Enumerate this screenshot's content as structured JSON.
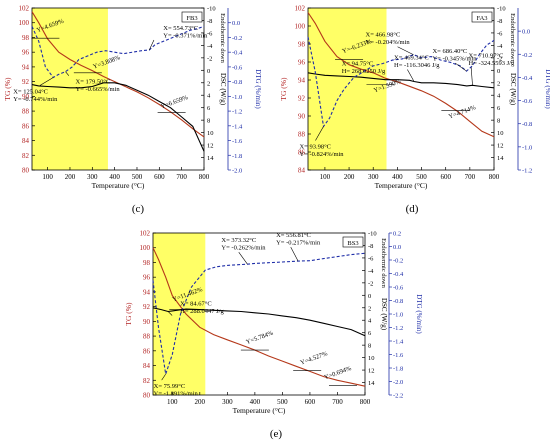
{
  "figure": {
    "panel_labels": [
      "(c)",
      "(d)",
      "(e)"
    ]
  },
  "chart_data": [
    {
      "id": "c",
      "type": "line",
      "sample_label": "FB3",
      "panel_label": "(c)",
      "xlabel": "Temperature (°C)",
      "ylabel_left": "TG (%)",
      "ylabel_right_dsc": "DSC (W/g)",
      "ylabel_right_dtg": "DTG (%/min)",
      "endo_label": "Endothermic  down",
      "xlim": [
        30,
        800
      ],
      "xticks": [
        100,
        200,
        300,
        400,
        500,
        600,
        700,
        800
      ],
      "ylim_tg": [
        80,
        102
      ],
      "yticks_tg": [
        80,
        82,
        84,
        86,
        88,
        90,
        92,
        94,
        96,
        98,
        100,
        102
      ],
      "ylim_dsc": [
        16,
        -10
      ],
      "yticks_dsc": [
        -10,
        -8,
        -6,
        -4,
        -2,
        0,
        2,
        4,
        6,
        8,
        10,
        12,
        14
      ],
      "ylim_dtg": [
        -2.0,
        0.2
      ],
      "yticks_dtg": [
        0.0,
        -0.2,
        -0.4,
        -0.6,
        -0.8,
        -1.0,
        -1.2,
        -1.4,
        -1.6,
        -1.8,
        -2.0
      ],
      "highlight_x": [
        30,
        370
      ],
      "series": [
        {
          "role": "tg",
          "x": [
            30,
            60,
            100,
            150,
            200,
            250,
            300,
            350,
            400,
            450,
            500,
            550,
            600,
            650,
            700,
            750,
            800
          ],
          "y": [
            101.5,
            100.0,
            97.8,
            96.0,
            95.0,
            94.2,
            93.5,
            92.7,
            92.0,
            91.3,
            90.6,
            89.8,
            88.9,
            87.9,
            86.8,
            85.6,
            84.5
          ]
        },
        {
          "role": "dsc",
          "x": [
            30,
            60,
            100,
            150,
            200,
            250,
            300,
            350,
            400,
            450,
            500,
            550,
            600,
            650,
            700,
            750,
            800
          ],
          "y": [
            2.3,
            2.5,
            2.6,
            2.7,
            2.8,
            2.8,
            2.6,
            2.0,
            2.0,
            2.4,
            3.2,
            4.0,
            5.0,
            6.0,
            7.5,
            9.0,
            13.0
          ]
        },
        {
          "role": "dtg",
          "x": [
            30,
            60,
            90,
            125,
            150,
            180,
            210,
            240,
            280,
            320,
            360,
            400,
            440,
            480,
            520,
            555,
            580,
            620,
            660,
            700,
            740,
            770,
            800
          ],
          "y": [
            -0.05,
            -0.25,
            -0.6,
            -0.744,
            -0.7,
            -0.665,
            -0.6,
            -0.5,
            -0.45,
            -0.4,
            -0.38,
            -0.4,
            -0.42,
            -0.4,
            -0.38,
            -0.371,
            -0.3,
            -0.25,
            -0.2,
            -0.15,
            -0.1,
            -0.08,
            -0.05
          ]
        }
      ],
      "annotations": [
        {
          "text": [
            "X= 554.73°C",
            "Y= -0.371%/min"
          ],
          "x": 555,
          "y": -0.371,
          "axis": "dtg"
        },
        {
          "text": [
            "X= 125.04°C",
            "Y= -0.744%/min"
          ],
          "x": 125,
          "y": -0.744,
          "axis": "dtg"
        },
        {
          "text": [
            "X= 179.50°C",
            "Y= -0.665%/min"
          ],
          "x": 180,
          "y": -0.665,
          "axis": "dtg"
        }
      ],
      "step_labels": [
        {
          "text": "Y=4.659%",
          "x": 90,
          "y": 97.9
        },
        {
          "text": "Y=3.808%",
          "x": 280,
          "y": 93.2
        },
        {
          "text": "Y=6.659%",
          "x": 655,
          "y": 87.8
        }
      ]
    },
    {
      "id": "d",
      "type": "line",
      "sample_label": "FA3",
      "panel_label": "(d)",
      "xlabel": "Temperature (°C)",
      "ylabel_left": "TG (%)",
      "ylabel_right_dsc": "DSC (W/g)",
      "ylabel_right_dtg": "DTG (%/min)",
      "endo_label": "Endothermic  down",
      "xlim": [
        30,
        800
      ],
      "xticks": [
        100,
        200,
        300,
        400,
        500,
        600,
        700,
        800
      ],
      "ylim_tg": [
        84,
        102
      ],
      "yticks_tg": [
        84,
        86,
        88,
        90,
        92,
        94,
        96,
        98,
        100,
        102
      ],
      "ylim_dsc": [
        16,
        -10
      ],
      "yticks_dsc": [
        -10,
        -8,
        -6,
        -4,
        -2,
        0,
        2,
        4,
        6,
        8,
        10,
        12,
        14
      ],
      "ylim_dtg": [
        -1.2,
        0.2
      ],
      "yticks_dtg": [
        0.0,
        -0.2,
        -0.4,
        -0.6,
        -0.8,
        -1.0,
        -1.2
      ],
      "highlight_x": [
        30,
        355
      ],
      "series": [
        {
          "role": "tg",
          "x": [
            30,
            60,
            100,
            150,
            200,
            250,
            300,
            350,
            400,
            450,
            500,
            550,
            600,
            650,
            700,
            750,
            800
          ],
          "y": [
            101.5,
            100.3,
            98.3,
            96.6,
            95.7,
            95.2,
            94.8,
            94.2,
            93.8,
            93.3,
            92.8,
            92.2,
            91.4,
            90.5,
            89.4,
            88.3,
            87.7
          ]
        },
        {
          "role": "dsc",
          "x": [
            30,
            60,
            100,
            150,
            200,
            250,
            300,
            350,
            400,
            450,
            469,
            500,
            550,
            600,
            650,
            687,
            711,
            750,
            800
          ],
          "y": [
            0.4,
            0.6,
            0.8,
            0.9,
            1.0,
            1.1,
            1.3,
            1.5,
            1.5,
            1.6,
            1.8,
            2.0,
            2.0,
            2.1,
            2.3,
            2.5,
            2.4,
            2.6,
            2.8
          ]
        },
        {
          "role": "dtg",
          "x": [
            30,
            60,
            94,
            120,
            150,
            180,
            220,
            260,
            300,
            340,
            380,
            420,
            467,
            500,
            540,
            580,
            620,
            660,
            686,
            710,
            740,
            770,
            800
          ],
          "y": [
            -0.05,
            -0.35,
            -0.824,
            -0.75,
            -0.6,
            -0.5,
            -0.4,
            -0.35,
            -0.3,
            -0.28,
            -0.25,
            -0.24,
            -0.204,
            -0.23,
            -0.22,
            -0.25,
            -0.27,
            -0.3,
            -0.345,
            -0.3,
            -0.2,
            -0.12,
            -0.08
          ]
        }
      ],
      "annotations": [
        {
          "text": [
            "X= 466.98°C",
            "Y= -0.204%/min"
          ],
          "x": 467,
          "y": -0.204,
          "axis": "dtg"
        },
        {
          "text": [
            "X= 686.40°C",
            "Y= -0.345%/min"
          ],
          "x": 686,
          "y": -0.345,
          "axis": "dtg"
        },
        {
          "text": [
            "X= 469.34°C",
            "H= -116.3046 J/g"
          ],
          "x": 469,
          "y": 1.8,
          "axis": "dsc"
        },
        {
          "text": [
            "X= 710.97°C",
            "H= -324.5593 J/g"
          ],
          "x": 711,
          "y": 2.4,
          "axis": "dsc"
        },
        {
          "text": [
            "X= 94.75°C",
            "H= 268.0250 J/g"
          ],
          "x": 95,
          "y": 0.8,
          "axis": "dsc"
        },
        {
          "text": [
            "X= 93.98°C",
            "Y= -0.824%/min"
          ],
          "x": 94,
          "y": -0.824,
          "axis": "dtg"
        }
      ],
      "step_labels": [
        {
          "text": "Y=-6.233%",
          "x": 200,
          "y": 96.3
        },
        {
          "text": "Y=1.590%",
          "x": 330,
          "y": 93.5
        },
        {
          "text": "Y=4.714%",
          "x": 640,
          "y": 90.6
        }
      ]
    },
    {
      "id": "e",
      "type": "line",
      "sample_label": "BS3",
      "panel_label": "(e)",
      "xlabel": "Temperature (°C)",
      "ylabel_left": "TG (%)",
      "ylabel_right_dsc": "DSC (W/g)",
      "ylabel_right_dtg": "DTG (%/min)",
      "endo_label": "Endothermic  down",
      "xlim": [
        30,
        800
      ],
      "xticks": [
        100,
        200,
        300,
        400,
        500,
        600,
        700,
        800
      ],
      "ylim_tg": [
        80,
        102
      ],
      "yticks_tg": [
        80,
        82,
        84,
        86,
        88,
        90,
        92,
        94,
        96,
        98,
        100,
        102
      ],
      "ylim_dsc": [
        16,
        -10
      ],
      "yticks_dsc": [
        -10,
        -8,
        -6,
        -4,
        -2,
        0,
        2,
        4,
        6,
        8,
        10,
        12,
        14
      ],
      "ylim_dtg": [
        -2.2,
        0.2
      ],
      "yticks_dtg": [
        0.2,
        0.0,
        -0.2,
        -0.4,
        -0.6,
        -0.8,
        -1.0,
        -1.2,
        -1.4,
        -1.6,
        -1.8,
        -2.0,
        -2.2
      ],
      "highlight_x": [
        30,
        220
      ],
      "series": [
        {
          "role": "tg",
          "x": [
            30,
            50,
            76,
            100,
            150,
            200,
            250,
            300,
            350,
            400,
            450,
            500,
            550,
            600,
            650,
            700,
            750,
            800
          ],
          "y": [
            100.0,
            98.4,
            96.0,
            93.5,
            91.0,
            89.2,
            88.2,
            87.5,
            86.8,
            86.1,
            85.3,
            84.6,
            83.9,
            83.2,
            82.5,
            82.0,
            81.6,
            81.2
          ]
        },
        {
          "role": "dsc",
          "x": [
            30,
            60,
            85,
            100,
            150,
            200,
            250,
            300,
            350,
            400,
            450,
            500,
            550,
            600,
            650,
            700,
            750,
            800
          ],
          "y": [
            2.0,
            2.3,
            2.6,
            2.5,
            2.2,
            2.3,
            2.4,
            2.5,
            2.6,
            2.8,
            3.0,
            3.3,
            3.6,
            4.0,
            4.5,
            5.0,
            5.5,
            6.5
          ]
        },
        {
          "role": "dtg",
          "x": [
            30,
            50,
            76,
            100,
            130,
            170,
            220,
            260,
            300,
            340,
            373,
            400,
            450,
            500,
            557,
            600,
            650,
            700,
            750,
            800
          ],
          "y": [
            -0.5,
            -1.2,
            -1.891,
            -1.6,
            -1.0,
            -0.6,
            -0.35,
            -0.3,
            -0.28,
            -0.27,
            -0.262,
            -0.25,
            -0.24,
            -0.23,
            -0.217,
            -0.21,
            -0.18,
            -0.15,
            -0.12,
            -0.1
          ]
        }
      ],
      "annotations": [
        {
          "text": [
            "X= 373.32°C",
            "Y= -0.262%/min"
          ],
          "x": 373,
          "y": -0.262,
          "axis": "dtg"
        },
        {
          "text": [
            "X= 556.81°C",
            "Y= -0.217%/min"
          ],
          "x": 557,
          "y": -0.217,
          "axis": "dtg"
        },
        {
          "text": [
            "X= 84.67°C",
            "H= 288.0447 J/g"
          ],
          "x": 85,
          "y": 2.6,
          "axis": "dsc"
        },
        {
          "text": [
            "X= 75.99°C",
            "Y= -1.891%/min"
          ],
          "x": 76,
          "y": -1.891,
          "axis": "dtg"
        }
      ],
      "step_labels": [
        {
          "text": "Y=11.462%",
          "x": 140,
          "y": 91.6
        },
        {
          "text": "Y=5.784%",
          "x": 400,
          "y": 86.1
        },
        {
          "text": "Y=4.527%",
          "x": 590,
          "y": 83.3
        },
        {
          "text": "Y=0.694%",
          "x": 720,
          "y": 81.3
        }
      ]
    }
  ]
}
